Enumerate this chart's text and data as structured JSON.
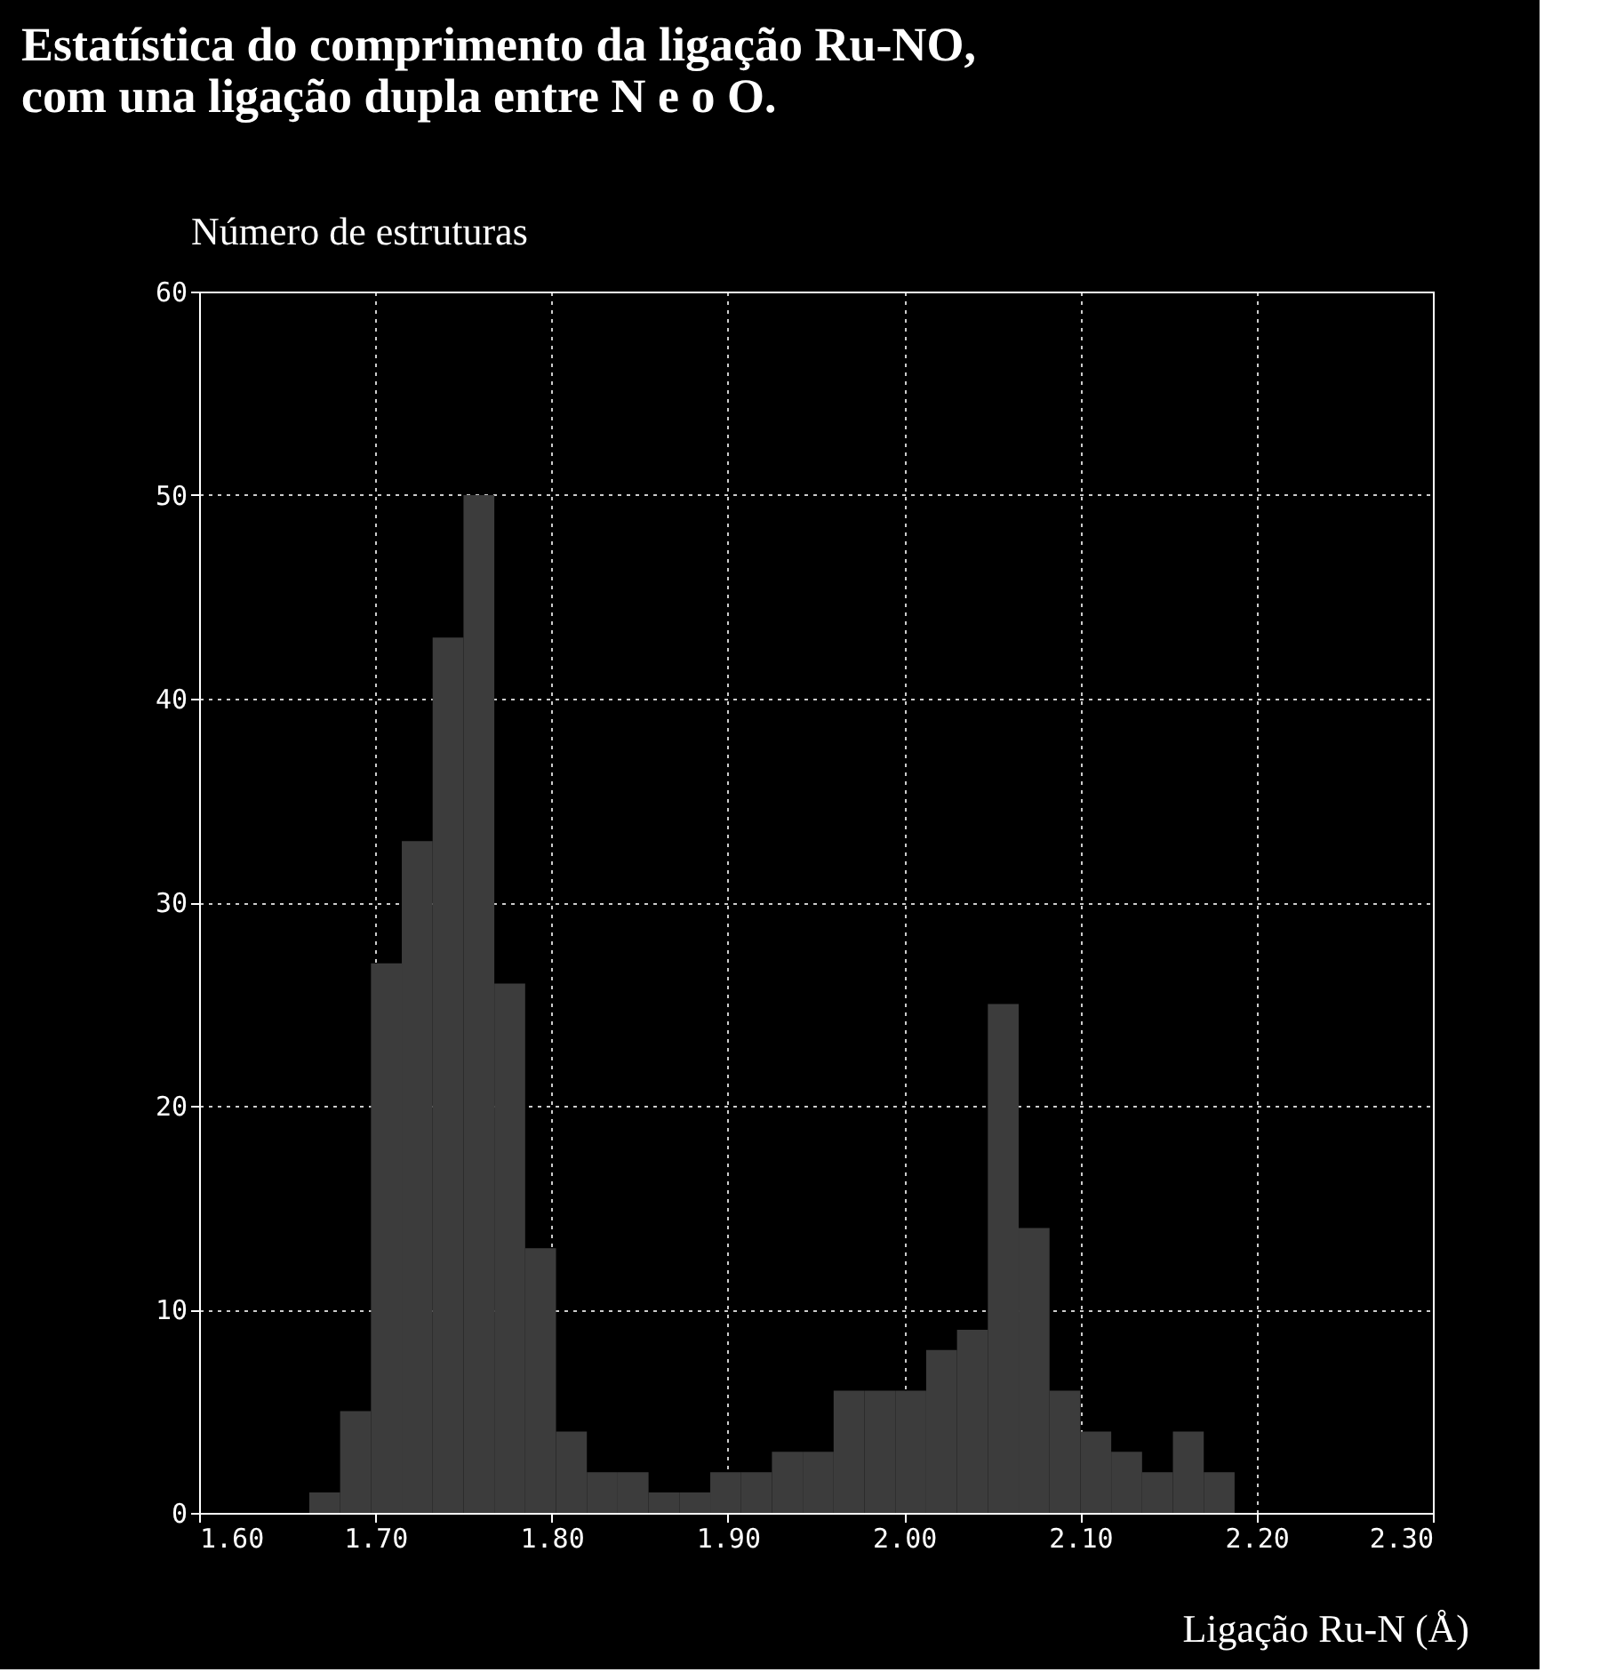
{
  "chart_data": {
    "type": "histogram",
    "title": "Estatística do comprimento da ligação Ru-NO, com una ligação dupla entre N e o O.",
    "xlabel": "Ligação Ru-N (Å)",
    "ylabel": "Número de estruturas",
    "bins": [
      1.6625,
      1.68,
      1.6975,
      1.715,
      1.7325,
      1.75,
      1.7675,
      1.785,
      1.8025,
      1.82,
      1.8375,
      1.855,
      1.8725,
      1.89,
      1.9075,
      1.925,
      1.9425,
      1.96,
      1.9775,
      1.995,
      2.0125,
      2.03,
      2.0475,
      2.065,
      2.0825,
      2.1,
      2.1175,
      2.135,
      2.1525,
      2.17,
      2.1875
    ],
    "values": [
      1,
      5,
      27,
      33,
      43,
      50,
      26,
      13,
      4,
      2,
      2,
      1,
      1,
      2,
      2,
      3,
      3,
      6,
      6,
      6,
      8,
      9,
      25,
      14,
      6,
      4,
      3,
      2,
      4,
      2
    ],
    "color": "#3c3c3c",
    "xlim": [
      1.6,
      2.3
    ],
    "xticks": [
      {
        "value": 1.6,
        "label": "1.60"
      },
      {
        "value": 1.7,
        "label": "1.70"
      },
      {
        "value": 1.8,
        "label": "1.80"
      },
      {
        "value": 1.9,
        "label": "1.90"
      },
      {
        "value": 2.0,
        "label": "2.00"
      },
      {
        "value": 2.1,
        "label": "2.10"
      },
      {
        "value": 2.2,
        "label": "2.20"
      },
      {
        "value": 2.3,
        "label": "2.30"
      }
    ],
    "ylim": [
      0,
      60
    ],
    "yticks": [
      0,
      10,
      20,
      30,
      40,
      50,
      60
    ],
    "grid": true
  }
}
